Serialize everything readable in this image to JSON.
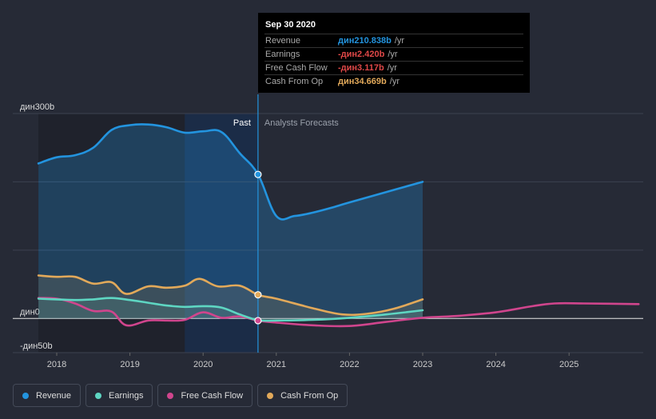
{
  "chart_data": {
    "type": "area",
    "x_unit": "year",
    "xlim": [
      2017.6,
      2025.95
    ],
    "ylim": [
      -50,
      300
    ],
    "y_axis_labels": [
      {
        "value": 300,
        "text": "дин300b"
      },
      {
        "value": 0,
        "text": "дин0"
      },
      {
        "value": -50,
        "text": "-дин50b"
      }
    ],
    "gridlines": [
      300,
      200,
      100,
      0,
      -50
    ],
    "x_ticks": [
      {
        "value": 2018,
        "text": "2018"
      },
      {
        "value": 2019,
        "text": "2019"
      },
      {
        "value": 2020,
        "text": "2020"
      },
      {
        "value": 2021,
        "text": "2021"
      },
      {
        "value": 2022,
        "text": "2022"
      },
      {
        "value": 2023,
        "text": "2023"
      },
      {
        "value": 2024,
        "text": "2024"
      },
      {
        "value": 2025,
        "text": "2025"
      }
    ],
    "past_label": "Past",
    "forecast_label": "Analysts Forecasts",
    "past_end": 2020.75,
    "highlight_start": 2019.75,
    "series": [
      {
        "name": "Revenue",
        "color": "#2394df",
        "fill": true,
        "x": [
          2017.75,
          2018.0,
          2018.25,
          2018.5,
          2018.75,
          2019.0,
          2019.25,
          2019.5,
          2019.75,
          2020.0,
          2020.25,
          2020.5,
          2020.75,
          2021.0,
          2021.25,
          2021.5,
          2021.75,
          2022.0,
          2022.5,
          2023.0
        ],
        "y": [
          227,
          236,
          239,
          250,
          276,
          283,
          284,
          280,
          272,
          274,
          273,
          242,
          211,
          150,
          150,
          155,
          162,
          170,
          185,
          200
        ]
      },
      {
        "name": "Earnings",
        "color": "#5ed6c2",
        "fill": true,
        "x": [
          2017.75,
          2018.0,
          2018.25,
          2018.5,
          2018.75,
          2019.0,
          2019.25,
          2019.5,
          2019.75,
          2020.0,
          2020.25,
          2020.5,
          2020.75,
          2021.0,
          2021.5,
          2022.0,
          2022.5,
          2023.0
        ],
        "y": [
          29,
          28,
          27,
          28,
          30,
          27,
          23,
          19,
          17,
          18,
          16,
          6,
          -2.42,
          -3,
          -2,
          1,
          6,
          12
        ]
      },
      {
        "name": "Free Cash Flow",
        "color": "#d0458d",
        "fill": false,
        "x": [
          2017.75,
          2018.0,
          2018.25,
          2018.5,
          2018.75,
          2018.95,
          2019.25,
          2019.5,
          2019.75,
          2020.0,
          2020.25,
          2020.5,
          2020.75,
          2021.0,
          2021.5,
          2022.0,
          2022.5,
          2023.0,
          2023.5,
          2024.0,
          2024.5,
          2024.8,
          2025.2,
          2025.95
        ],
        "y": [
          30,
          29,
          22,
          11,
          10,
          -10,
          -3,
          -3,
          -2,
          9,
          1,
          3,
          -3.12,
          -6,
          -10,
          -11,
          -5,
          1,
          4,
          9,
          18,
          22,
          22,
          21
        ]
      },
      {
        "name": "Cash From Op",
        "color": "#e2a95a",
        "fill": true,
        "x": [
          2017.75,
          2018.0,
          2018.25,
          2018.5,
          2018.75,
          2018.95,
          2019.25,
          2019.5,
          2019.75,
          2019.95,
          2020.2,
          2020.5,
          2020.75,
          2021.0,
          2021.5,
          2021.9,
          2022.25,
          2022.6,
          2023.0
        ],
        "y": [
          63,
          61,
          61,
          51,
          53,
          36,
          47,
          45,
          48,
          58,
          47,
          48,
          34.67,
          29,
          15,
          6,
          7,
          14,
          28
        ]
      }
    ],
    "markers": [
      {
        "series": "Revenue",
        "x": 2020.75,
        "y": 210.838
      },
      {
        "series": "Cash From Op",
        "x": 2020.75,
        "y": 34.669
      },
      {
        "series": "Free Cash Flow",
        "x": 2020.75,
        "y": -3.117
      }
    ]
  },
  "tooltip": {
    "date": "Sep 30 2020",
    "rows": [
      {
        "label": "Revenue",
        "value": "дин210.838b",
        "unit": "/yr",
        "color": "#2394df"
      },
      {
        "label": "Earnings",
        "value": "-дин2.420b",
        "unit": "/yr",
        "color": "#e04848"
      },
      {
        "label": "Free Cash Flow",
        "value": "-дин3.117b",
        "unit": "/yr",
        "color": "#e04848"
      },
      {
        "label": "Cash From Op",
        "value": "дин34.669b",
        "unit": "/yr",
        "color": "#e2a95a"
      }
    ]
  },
  "legend": [
    {
      "label": "Revenue",
      "color": "#2394df"
    },
    {
      "label": "Earnings",
      "color": "#5ed6c2"
    },
    {
      "label": "Free Cash Flow",
      "color": "#d0458d"
    },
    {
      "label": "Cash From Op",
      "color": "#e2a95a"
    }
  ]
}
